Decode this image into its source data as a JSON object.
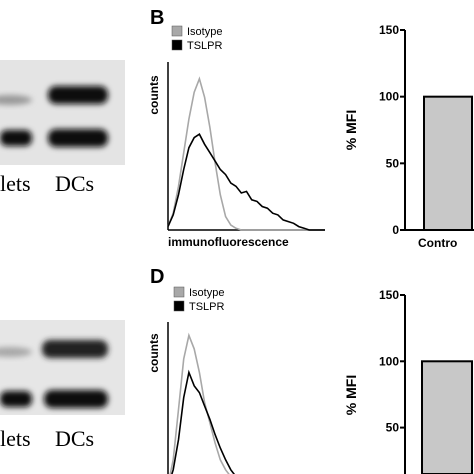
{
  "blots": [
    {
      "labels": [
        "lets",
        "DCs"
      ]
    },
    {
      "labels": [
        "lets",
        "DCs"
      ]
    }
  ],
  "chart_data": [
    {
      "type": "line",
      "panel": "B",
      "y_label": "counts",
      "x_label": "immunofluorescence",
      "x": [
        0,
        1,
        2,
        3,
        4,
        5,
        6,
        7,
        8,
        9,
        10,
        11,
        12,
        13,
        14,
        15,
        16,
        17,
        18,
        19,
        20,
        21,
        22,
        23,
        24,
        25,
        26,
        27,
        28,
        29,
        30
      ],
      "xlim": [
        0,
        30
      ],
      "ylim": [
        0,
        100
      ],
      "series": [
        {
          "name": "Isotype",
          "color": "#a8a8a8",
          "values": [
            2,
            10,
            26,
            46,
            66,
            82,
            90,
            79,
            61,
            40,
            21,
            8,
            3,
            1,
            0,
            0,
            0,
            0,
            0,
            0,
            0,
            0,
            0,
            0,
            0,
            0,
            0,
            0,
            0,
            0,
            0
          ]
        },
        {
          "name": "TSLPR",
          "color": "#000000",
          "values": [
            2,
            9,
            21,
            36,
            49,
            55,
            57,
            51,
            46,
            41,
            36,
            33,
            28,
            26,
            22,
            23,
            18,
            17,
            14,
            13,
            10,
            9,
            6,
            5,
            4,
            2,
            1,
            0,
            0,
            0,
            0
          ]
        }
      ]
    },
    {
      "type": "bar",
      "y_label": "% MFI",
      "categories": [
        "Contro"
      ],
      "values": [
        100
      ],
      "color": "#c8c8c8",
      "ylim": [
        0,
        150
      ],
      "yticks": [
        0,
        50,
        100,
        150
      ]
    },
    {
      "type": "line",
      "panel": "D",
      "y_label": "counts",
      "x": [
        0,
        1,
        2,
        3,
        4,
        5,
        6,
        7,
        8,
        9,
        10,
        11,
        12,
        13,
        14
      ],
      "xlim": [
        0,
        30
      ],
      "ylim": [
        0,
        100
      ],
      "series": [
        {
          "name": "Isotype",
          "color": "#a8a8a8",
          "values": [
            3,
            18,
            48,
            78,
            92,
            84,
            70,
            52,
            40,
            28,
            18,
            12,
            8,
            4,
            2
          ]
        },
        {
          "name": "TSLPR",
          "color": "#000000",
          "values": [
            2,
            12,
            30,
            55,
            70,
            62,
            58,
            50,
            42,
            33,
            25,
            18,
            12,
            8,
            4
          ]
        }
      ]
    },
    {
      "type": "bar",
      "y_label": "% MFI",
      "categories": [
        null
      ],
      "values": [
        100
      ],
      "color": "#c8c8c8",
      "ylim": [
        15,
        150
      ],
      "yticks": [
        50,
        100,
        150
      ]
    }
  ]
}
